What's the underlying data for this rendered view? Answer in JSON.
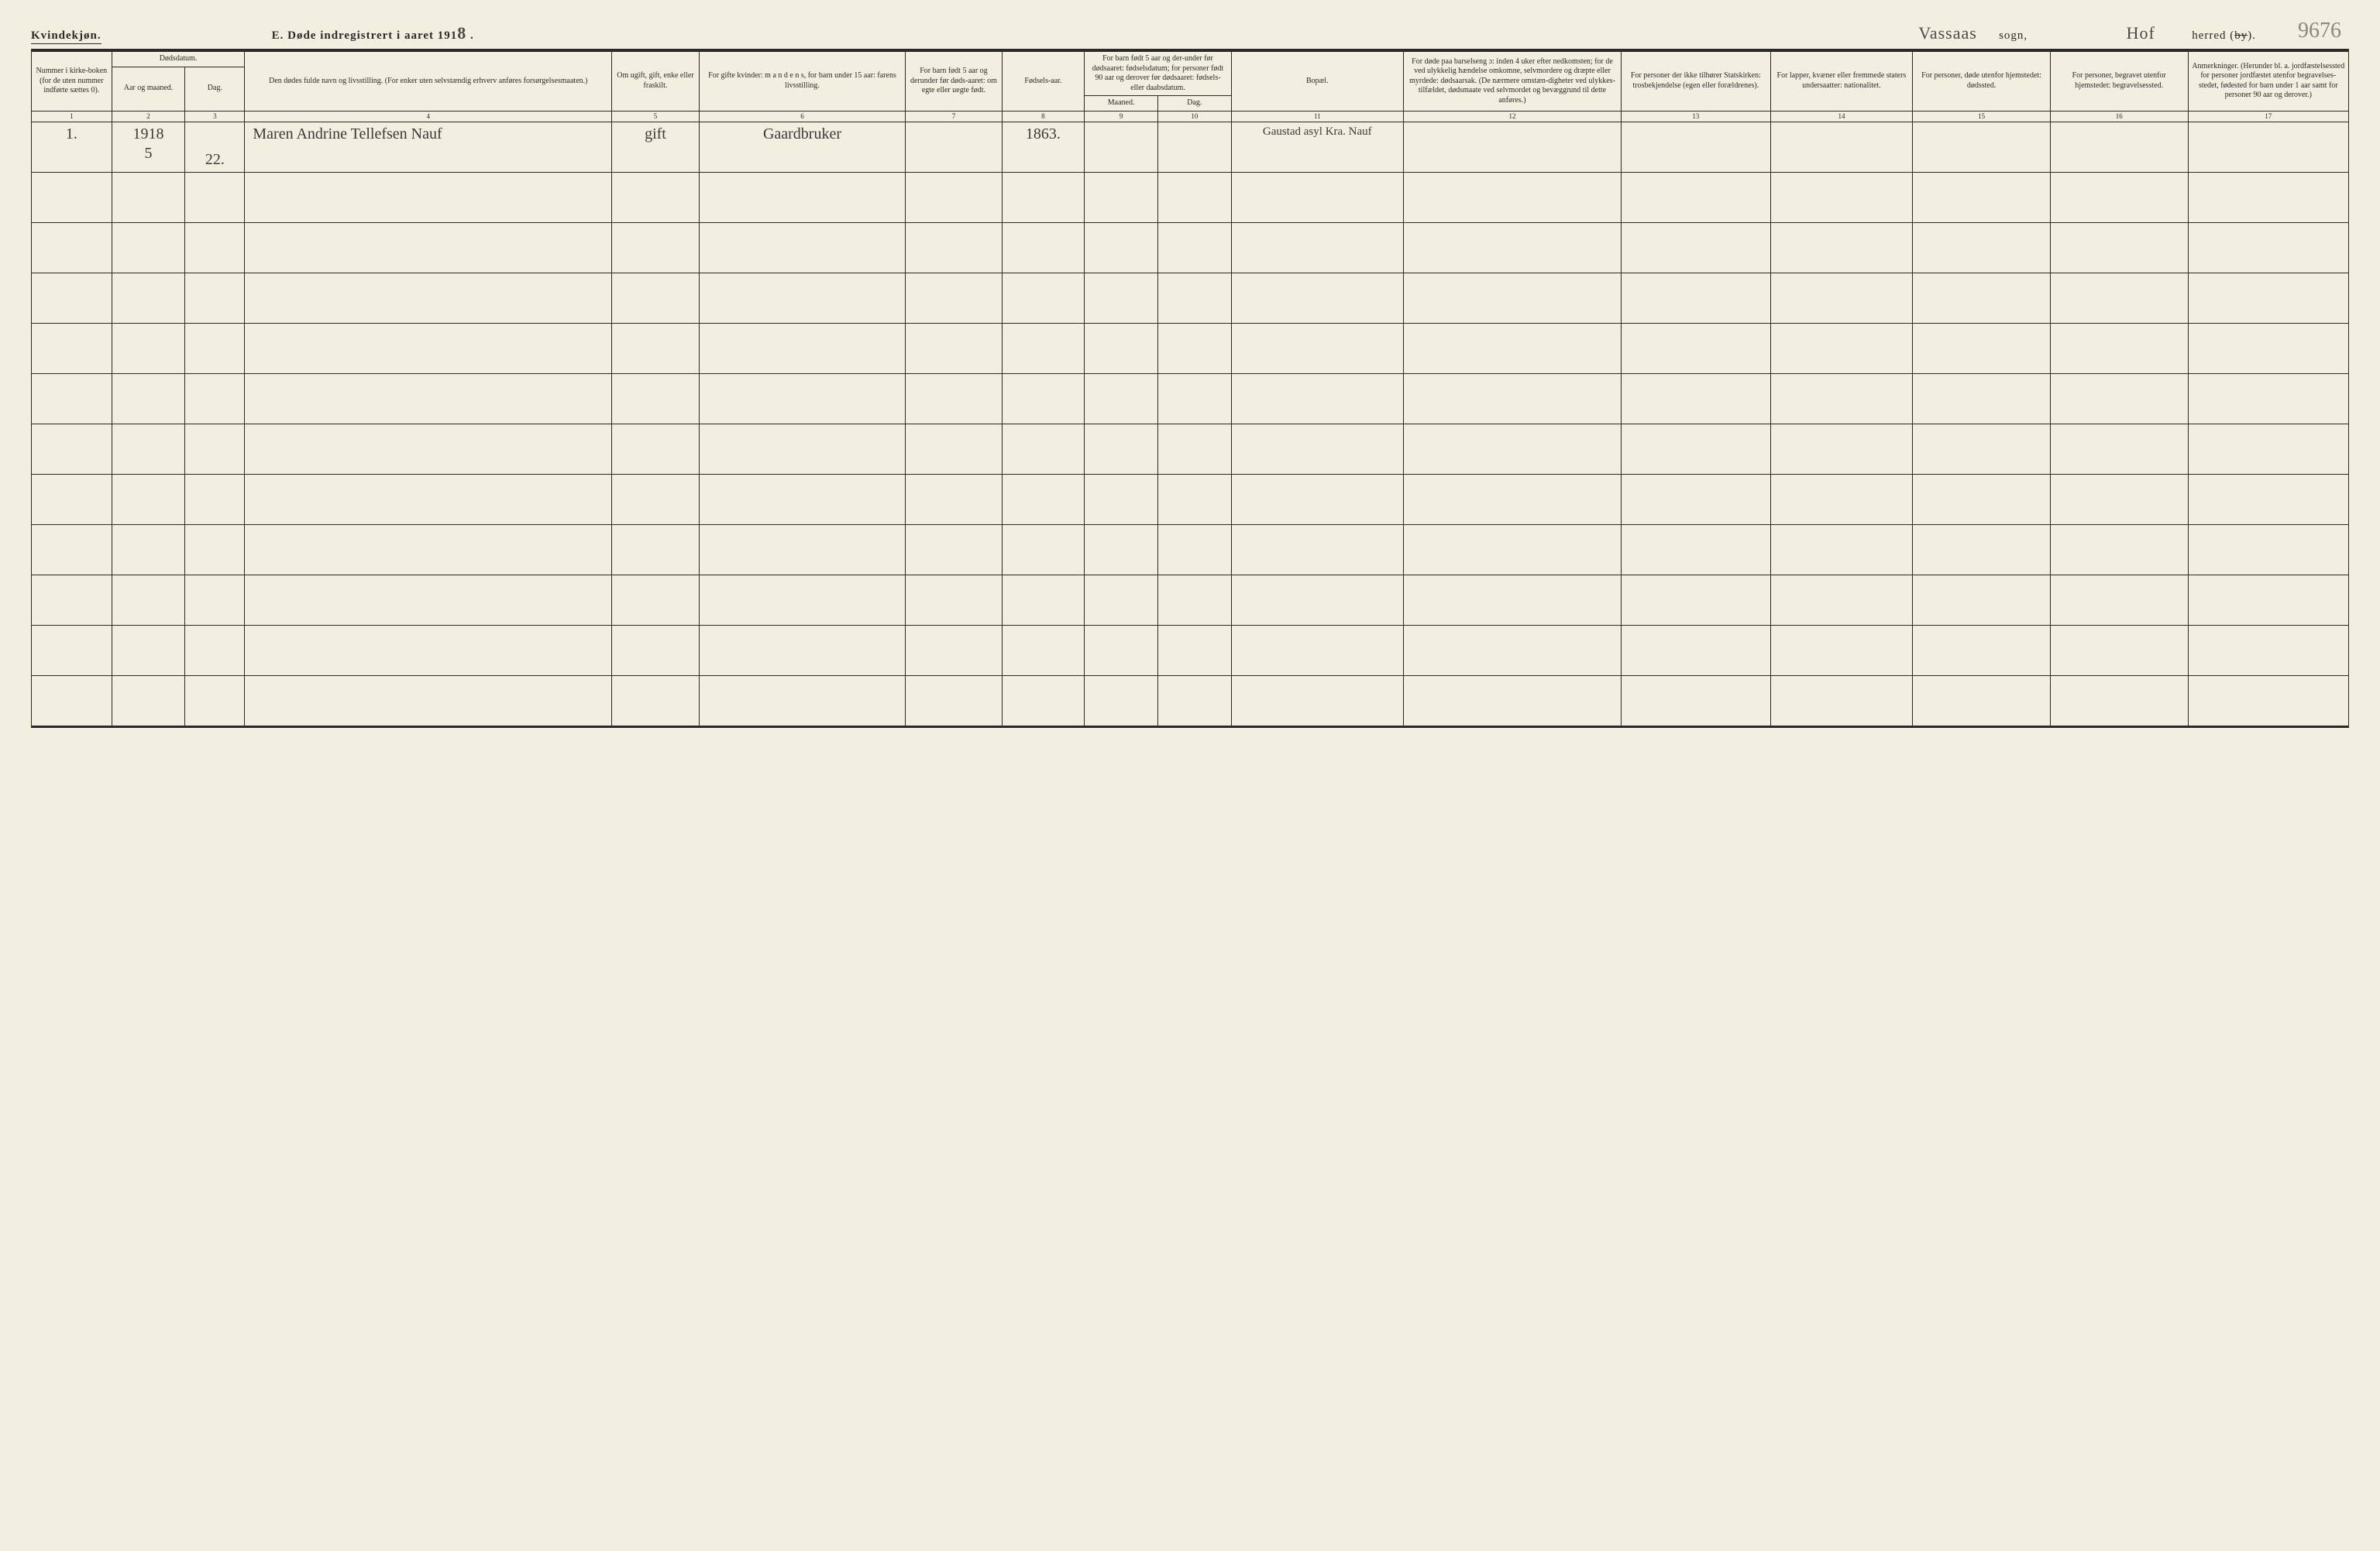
{
  "header": {
    "gender": "Kvindekjøn.",
    "title_prefix": "E.  Døde indregistrert i aaret 191",
    "year_last_digit": "8",
    "title_suffix": ".",
    "sogn_value": "Vassaas",
    "sogn_label": "sogn,",
    "herred_value": "Hof",
    "herred_label_pre": "herred (",
    "herred_by": "by",
    "herred_label_post": ").",
    "page_number": "9676"
  },
  "columns": {
    "c1": "Nummer i kirke-boken (for de uten nummer indførte sættes 0).",
    "c23_top": "Dødsdatum.",
    "c2": "Aar og maaned.",
    "c3": "Dag.",
    "c4": "Den dødes fulde navn og livsstilling.\n(For enker uten selvstændig erhverv anføres forsørgelsesmaaten.)",
    "c5": "Om ugift, gift, enke eller fraskilt.",
    "c6": "For gifte kvinder: m a n d e n s, for barn under 15 aar: farens livsstilling.",
    "c7": "For barn født 5 aar og derunder før døds-aaret: om egte eller uegte født.",
    "c8": "Fødsels-aar.",
    "c910_top": "For barn født 5 aar og der-under før dødsaaret: fødselsdatum; for personer født 90 aar og derover før dødsaaret: fødsels- eller daabsdatum.",
    "c9": "Maaned.",
    "c10": "Dag.",
    "c11": "Bopæl.",
    "c12": "For døde paa barselseng ɔ: inden 4 uker efter nedkomsten; for de ved ulykkelig hændelse omkomne, selvmordere og dræpte eller myrdede: dødsaarsak. (De nærmere omstæn-digheter ved ulykkes-tilfældet, dødsmaate ved selvmordet og bevæggrund til dette anføres.)",
    "c13": "For personer der ikke tilhører Statskirken: trosbekjendelse (egen eller forældrenes).",
    "c14": "For lapper, kvæner eller fremmede staters undersaatter: nationalitet.",
    "c15": "For personer, døde utenfor hjemstedet: dødssted.",
    "c16": "For personer, begravet utenfor hjemstedet: begravelsessted.",
    "c17": "Anmerkninger.\n(Herunder bl. a. jordfæstelsessted for personer jordfæstet utenfor begravelses-stedet, fødested for barn under 1 aar samt for personer 90 aar og derover.)"
  },
  "colnums": [
    "1",
    "2",
    "3",
    "4",
    "5",
    "6",
    "7",
    "8",
    "9",
    "10",
    "11",
    "12",
    "13",
    "14",
    "15",
    "16",
    "17"
  ],
  "row1": {
    "num": "1.",
    "year": "1918",
    "month": "5",
    "day": "22.",
    "name": "Maren Andrine Tellefsen Nauf",
    "marital": "gift",
    "husband": "Gaardbruker",
    "birthyear": "1863.",
    "residence": "Gaustad asyl Kra. Nauf"
  },
  "empty_rows": 11,
  "colors": {
    "paper": "#f2efe0",
    "ink": "#2a2a2a",
    "pencil": "#8a8a7a"
  }
}
